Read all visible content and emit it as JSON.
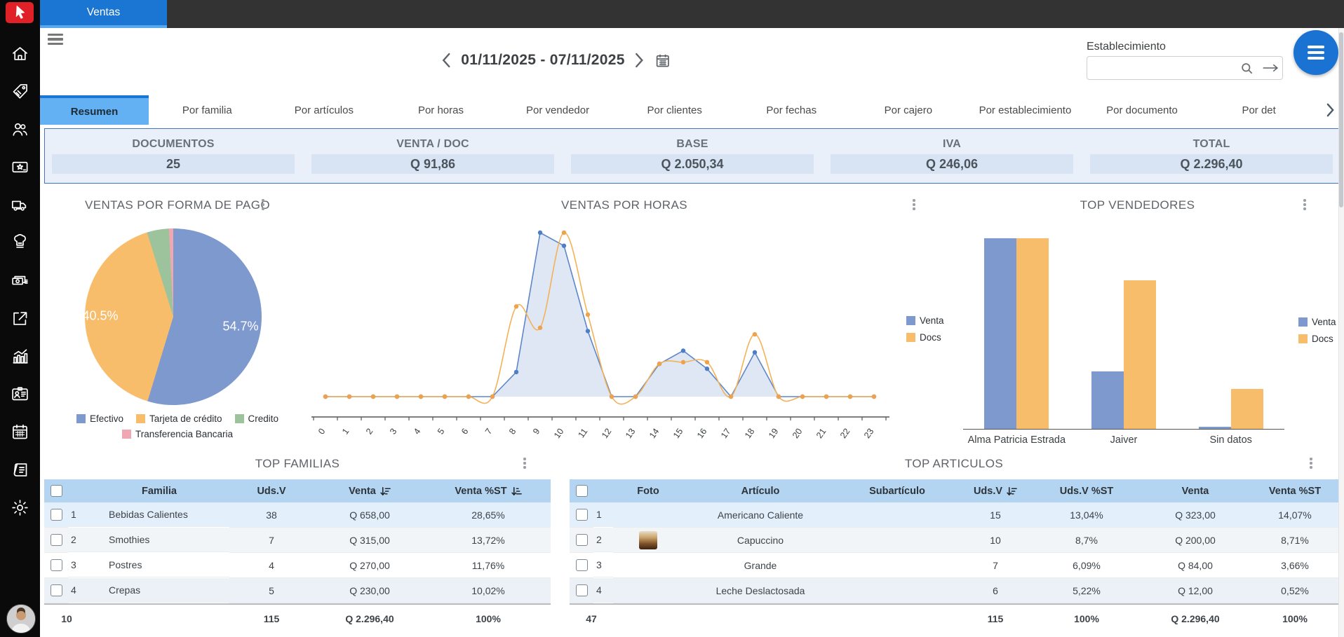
{
  "topbar": {
    "app_tab": "Ventas"
  },
  "sidebar": {
    "items": [
      {
        "name": "home"
      },
      {
        "name": "price-tag"
      },
      {
        "name": "customers"
      },
      {
        "name": "gift-card"
      },
      {
        "name": "delivery-truck"
      },
      {
        "name": "chef-hat"
      },
      {
        "name": "cash"
      },
      {
        "name": "export"
      },
      {
        "name": "statistics"
      },
      {
        "name": "id-card"
      },
      {
        "name": "calendar"
      },
      {
        "name": "documents"
      },
      {
        "name": "settings"
      }
    ]
  },
  "header": {
    "date_range": "01/11/2025 - 07/11/2025",
    "establishment_label": "Establecimiento",
    "establishment_value": ""
  },
  "tabs": [
    {
      "label": "Resumen",
      "active": true
    },
    {
      "label": "Por familia",
      "active": false
    },
    {
      "label": "Por artículos",
      "active": false
    },
    {
      "label": "Por horas",
      "active": false
    },
    {
      "label": "Por vendedor",
      "active": false
    },
    {
      "label": "Por clientes",
      "active": false
    },
    {
      "label": "Por fechas",
      "active": false
    },
    {
      "label": "Por cajero",
      "active": false
    },
    {
      "label": "Por establecimiento",
      "active": false
    },
    {
      "label": "Por documento",
      "active": false
    },
    {
      "label": "Por det",
      "active": false
    }
  ],
  "summary": {
    "cards": [
      {
        "label": "DOCUMENTOS",
        "value": "25"
      },
      {
        "label": "VENTA / DOC",
        "value": "Q 91,86"
      },
      {
        "label": "BASE",
        "value": "Q 2.050,34"
      },
      {
        "label": "IVA",
        "value": "Q 246,06"
      },
      {
        "label": "TOTAL",
        "value": "Q 2.296,40"
      }
    ]
  },
  "chart_data": [
    {
      "type": "pie",
      "title": "VENTAS POR FORMA DE PAGO",
      "legend_position": "bottom",
      "slices": [
        {
          "label": "Efectivo",
          "pct": 54.7,
          "color": "#7d99ce",
          "shown_label": "54.7%"
        },
        {
          "label": "Tarjeta de crédito",
          "pct": 40.5,
          "color": "#f8bd6b",
          "shown_label": "40.5%"
        },
        {
          "label": "Credito",
          "pct": 4.0,
          "color": "#9cc39b",
          "shown_label": ""
        },
        {
          "label": "Transferencia Bancaria",
          "pct": 0.8,
          "color": "#efa7b1",
          "shown_label": ""
        }
      ]
    },
    {
      "type": "area",
      "title": "VENTAS POR HORAS",
      "legend_position": "right",
      "x": [
        0,
        1,
        2,
        3,
        4,
        5,
        6,
        7,
        8,
        9,
        10,
        11,
        12,
        13,
        14,
        15,
        16,
        17,
        18,
        19,
        20,
        21,
        22,
        23
      ],
      "xlabel": "",
      "ylabel": "",
      "y_axis_labels": false,
      "series": [
        {
          "name": "Venta",
          "color": "#5d87c9",
          "fill": true,
          "smooth": false,
          "values": [
            0,
            0,
            0,
            0,
            0,
            0,
            0,
            0,
            0.15,
            1,
            0.92,
            0.4,
            0,
            0,
            0.2,
            0.28,
            0.17,
            0,
            0.27,
            0,
            0,
            0,
            0,
            0
          ]
        },
        {
          "name": "Docs",
          "color": "#f3b257",
          "fill": false,
          "smooth": true,
          "values": [
            0,
            0,
            0,
            0,
            0,
            0,
            0,
            0,
            0.55,
            0.42,
            1,
            0.5,
            0,
            0,
            0.2,
            0.21,
            0.21,
            0,
            0.38,
            0,
            0,
            0,
            0,
            0
          ]
        }
      ]
    },
    {
      "type": "bar",
      "title": "TOP VENDEDORES",
      "legend_position": "right",
      "categories": [
        "Alma Patricia Estrada",
        "Jaiver",
        "Sin datos"
      ],
      "y_axis_labels": false,
      "series": [
        {
          "name": "Venta",
          "color": "#7d99ce",
          "values": [
            100,
            30,
            1
          ]
        },
        {
          "name": "Docs",
          "color": "#f8bd6b",
          "values": [
            100,
            78,
            21
          ]
        }
      ]
    }
  ],
  "tables": {
    "familias": {
      "title": "TOP FAMILIAS",
      "columns": [
        "Familia",
        "Uds.V",
        "Venta",
        "Venta %ST"
      ],
      "rows": [
        {
          "num": "1",
          "familia": "Bebidas Calientes",
          "uds": "38",
          "venta": "Q 658,00",
          "pct": "28,65%"
        },
        {
          "num": "2",
          "familia": "Smothies",
          "uds": "7",
          "venta": "Q 315,00",
          "pct": "13,72%"
        },
        {
          "num": "3",
          "familia": "Postres",
          "uds": "4",
          "venta": "Q 270,00",
          "pct": "11,76%"
        },
        {
          "num": "4",
          "familia": "Crepas",
          "uds": "5",
          "venta": "Q 230,00",
          "pct": "10,02%"
        }
      ],
      "footer": {
        "count": "10",
        "uds": "115",
        "venta": "Q 2.296,40",
        "pct": "100%"
      }
    },
    "articulos": {
      "title": "TOP ARTICULOS",
      "columns": [
        "Foto",
        "Artículo",
        "Subartículo",
        "Uds.V",
        "Uds.V %ST",
        "Venta",
        "Venta %ST"
      ],
      "rows": [
        {
          "num": "1",
          "foto": "coffee-americano",
          "articulo": "Americano Caliente",
          "subarticulo": "",
          "uds": "15",
          "uds_pct": "13,04%",
          "venta": "Q 323,00",
          "venta_pct": "14,07%"
        },
        {
          "num": "2",
          "foto": "coffee-capuccino",
          "articulo": "Capuccino",
          "subarticulo": "",
          "uds": "10",
          "uds_pct": "8,7%",
          "venta": "Q 200,00",
          "venta_pct": "8,71%"
        },
        {
          "num": "3",
          "foto": "",
          "articulo": "Grande",
          "subarticulo": "",
          "uds": "7",
          "uds_pct": "6,09%",
          "venta": "Q 84,00",
          "venta_pct": "3,66%"
        },
        {
          "num": "4",
          "foto": "",
          "articulo": "Leche Deslactosada",
          "subarticulo": "",
          "uds": "6",
          "uds_pct": "5,22%",
          "venta": "Q 12,00",
          "venta_pct": "0,52%"
        }
      ],
      "footer": {
        "count": "47",
        "uds": "115",
        "uds_pct": "100%",
        "venta": "Q 2.296,40",
        "venta_pct": "100%"
      }
    }
  }
}
